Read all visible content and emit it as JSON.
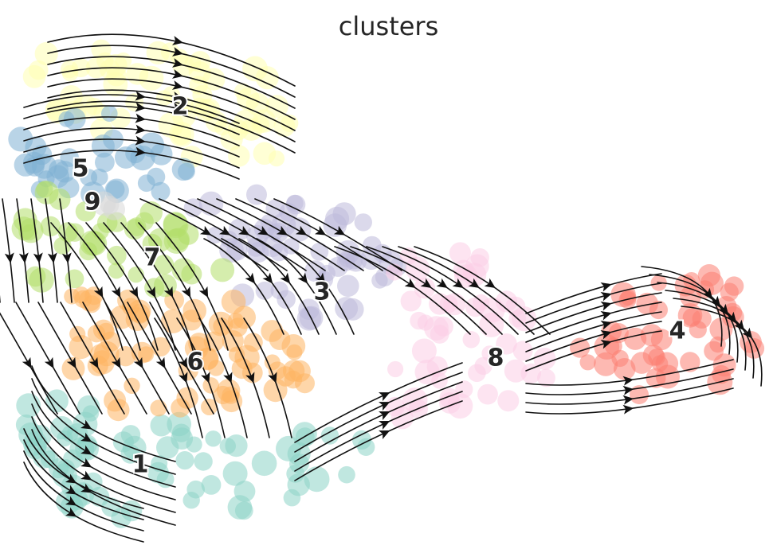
{
  "title": "clusters",
  "chart_data": {
    "type": "scatter",
    "title": "clusters",
    "xlabel": "",
    "ylabel": "",
    "grid": false,
    "legend": "on data",
    "stream_color": "#111111",
    "clusters": [
      {
        "label": "1",
        "color": "#8dd3c7"
      },
      {
        "label": "2",
        "color": "#ffffb3"
      },
      {
        "label": "3",
        "color": "#bebada"
      },
      {
        "label": "4",
        "color": "#fb8072"
      },
      {
        "label": "5",
        "color": "#80b1d3"
      },
      {
        "label": "6",
        "color": "#fdb462"
      },
      {
        "label": "7",
        "color": "#b3de69"
      },
      {
        "label": "8",
        "color": "#fccde5"
      },
      {
        "label": "9",
        "color": "#d9d9d9"
      }
    ]
  }
}
